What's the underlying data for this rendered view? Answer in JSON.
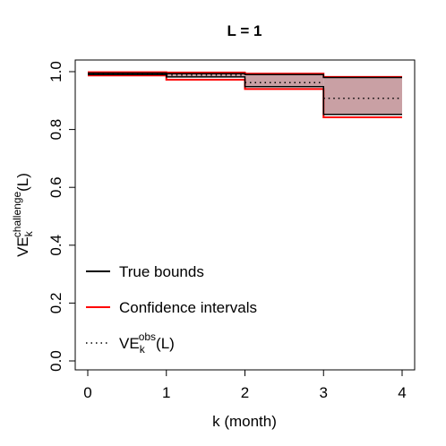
{
  "chart_data": {
    "type": "line",
    "title": "L =  1",
    "xlabel": "k (month)",
    "ylabel": {
      "main": "VE",
      "sub": "k",
      "sup": "challenge",
      "suffix": "(L)"
    },
    "xlim": [
      0,
      4
    ],
    "ylim": [
      0,
      1
    ],
    "x_ticks": [
      "0",
      "1",
      "2",
      "3",
      "4"
    ],
    "y_ticks": [
      "0.0",
      "0.2",
      "0.4",
      "0.6",
      "0.8",
      "1.0"
    ],
    "steps": [
      0,
      1,
      2,
      3,
      4
    ],
    "series": [
      {
        "name": "True bounds",
        "color": "#000000",
        "upper": [
          0.995,
          0.993,
          0.99,
          0.98
        ],
        "lower": [
          0.99,
          0.982,
          0.948,
          0.852
        ]
      },
      {
        "name": "Confidence intervals",
        "color": "#ff0000",
        "upper": [
          0.998,
          0.997,
          0.993,
          0.982
        ],
        "lower": [
          0.987,
          0.972,
          0.94,
          0.842
        ]
      },
      {
        "name": "VE_k^obs(L)",
        "color": "#000000",
        "style": "dotted",
        "values": [
          0.993,
          0.988,
          0.962,
          0.908
        ]
      }
    ],
    "fill_color": "#c9a0a4",
    "legend": {
      "position": "bottom-left",
      "items": [
        {
          "label": "True bounds",
          "color": "#000000",
          "style": "solid"
        },
        {
          "label": "Confidence intervals",
          "color": "#ff0000",
          "style": "solid"
        },
        {
          "label_main": "VE",
          "label_sub": "k",
          "label_sup": "obs",
          "label_suffix": "(L)",
          "color": "#000000",
          "style": "dotted"
        }
      ]
    }
  }
}
